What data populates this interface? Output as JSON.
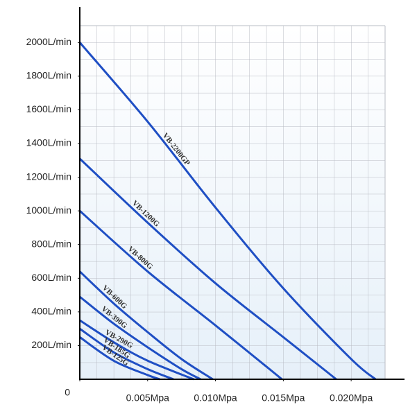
{
  "chart_data": {
    "type": "line",
    "xlim": [
      0,
      0.0225
    ],
    "ylim": [
      0,
      2100
    ],
    "xticks": [
      {
        "value": 0,
        "label": "0"
      },
      {
        "value": 0.005,
        "label": "0.005Mpa"
      },
      {
        "value": 0.01,
        "label": "0.010Mpa"
      },
      {
        "value": 0.015,
        "label": "0.015Mpa"
      },
      {
        "value": 0.02,
        "label": "0.020Mpa"
      }
    ],
    "yticks": [
      {
        "value": 200,
        "label": "200L/min"
      },
      {
        "value": 400,
        "label": "400L/min"
      },
      {
        "value": 600,
        "label": "600L/min"
      },
      {
        "value": 800,
        "label": "800L/min"
      },
      {
        "value": 1000,
        "label": "1000L/min"
      },
      {
        "value": 1200,
        "label": "1200L/min"
      },
      {
        "value": 1400,
        "label": "1400L/min"
      },
      {
        "value": 1600,
        "label": "1600L/min"
      },
      {
        "value": 1800,
        "label": "1800L/min"
      },
      {
        "value": 2000,
        "label": "2000L/min"
      }
    ],
    "grid": true,
    "series": [
      {
        "name": "VB-2200GP",
        "color": "#1f4fc4",
        "x": [
          0,
          0.005,
          0.01,
          0.015,
          0.02,
          0.0218
        ],
        "values": [
          2000,
          1530,
          1020,
          540,
          120,
          0
        ]
      },
      {
        "name": "VB-1200G",
        "color": "#1f4fc4",
        "x": [
          0,
          0.005,
          0.01,
          0.015,
          0.0189
        ],
        "values": [
          1310,
          930,
          570,
          250,
          0
        ]
      },
      {
        "name": "VB-800G",
        "color": "#1f4fc4",
        "x": [
          0,
          0.005,
          0.01,
          0.0149
        ],
        "values": [
          1000,
          640,
          320,
          0
        ]
      },
      {
        "name": "VB-600G",
        "color": "#1f4fc4",
        "x": [
          0,
          0.0025,
          0.005,
          0.0075,
          0.0098
        ],
        "values": [
          640,
          450,
          280,
          120,
          0
        ]
      },
      {
        "name": "VB-390G",
        "color": "#1f4fc4",
        "x": [
          0,
          0.0025,
          0.005,
          0.0075,
          0.0089
        ],
        "values": [
          490,
          330,
          190,
          60,
          0
        ]
      },
      {
        "name": "VB-290G",
        "color": "#1f4fc4",
        "x": [
          0,
          0.0025,
          0.005,
          0.0084
        ],
        "values": [
          350,
          220,
          110,
          0
        ]
      },
      {
        "name": "VB-185G",
        "color": "#1f4fc4",
        "x": [
          0,
          0.0025,
          0.005,
          0.0069
        ],
        "values": [
          300,
          160,
          60,
          0
        ]
      },
      {
        "name": "VB-125G",
        "color": "#1f4fc4",
        "x": [
          0,
          0.0025,
          0.005,
          0.0059
        ],
        "values": [
          250,
          110,
          25,
          0
        ]
      }
    ]
  }
}
